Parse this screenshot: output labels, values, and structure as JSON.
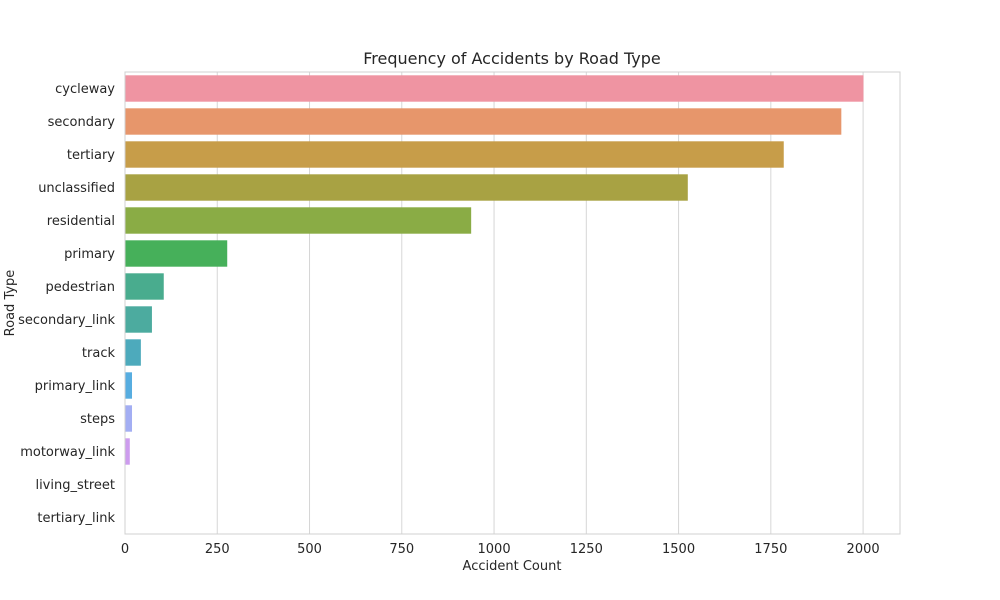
{
  "chart_data": {
    "type": "bar",
    "orientation": "horizontal",
    "title": "Frequency of Accidents by Road Type",
    "xlabel": "Accident Count",
    "ylabel": "Road Type",
    "xlim": [
      0,
      2100
    ],
    "xticks": [
      0,
      250,
      500,
      750,
      1000,
      1250,
      1500,
      1750,
      2000
    ],
    "grid": "vertical",
    "legend": "none",
    "categories": [
      "cycleway",
      "secondary",
      "tertiary",
      "unclassified",
      "residential",
      "primary",
      "pedestrian",
      "secondary_link",
      "track",
      "primary_link",
      "steps",
      "motorway_link",
      "living_street",
      "tertiary_link"
    ],
    "values": [
      2001,
      1941,
      1785,
      1525,
      938,
      277,
      105,
      73,
      43,
      19,
      19,
      13,
      1,
      1
    ],
    "colors": [
      "#ef94a2",
      "#e7966b",
      "#c79d49",
      "#a8a243",
      "#8aac45",
      "#46b05a",
      "#49ac8e",
      "#4cab9f",
      "#4daabc",
      "#57ade0",
      "#a3aef3",
      "#cd9cee",
      "#eb8ee4",
      "#f08fc0"
    ]
  }
}
